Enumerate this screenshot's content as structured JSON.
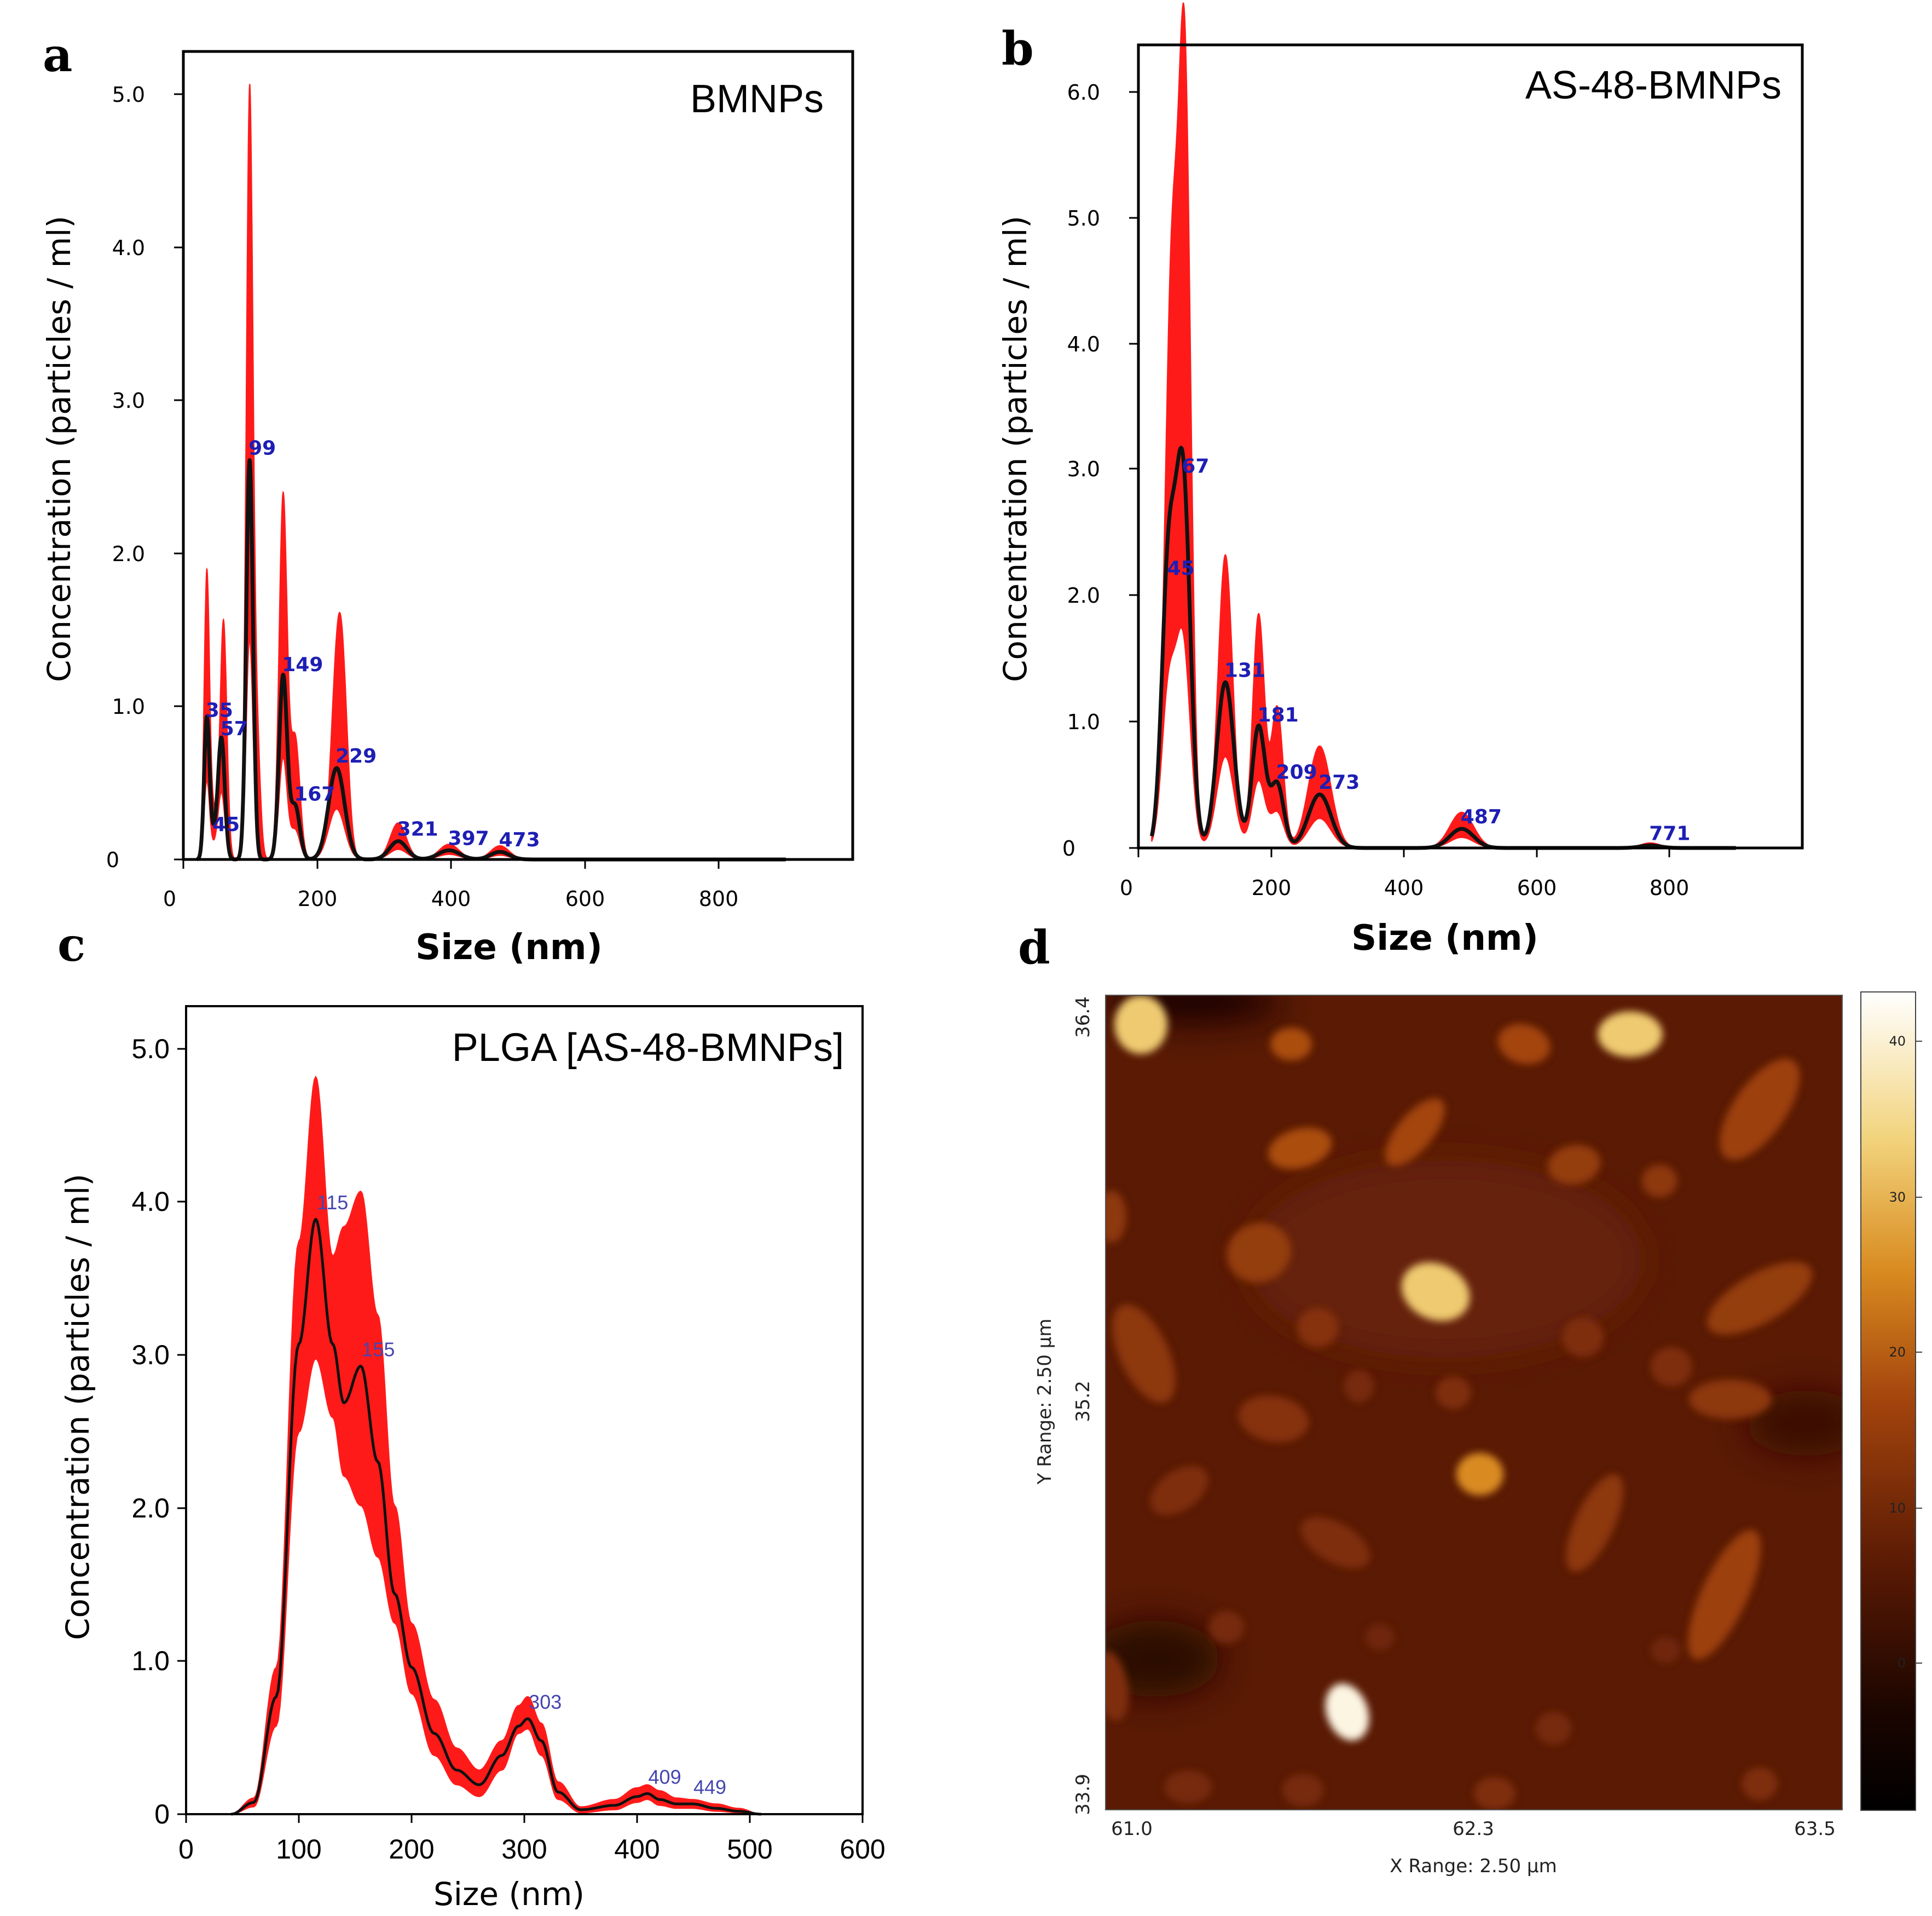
{
  "panels": {
    "a": {
      "label": "a",
      "title": "BMNPs",
      "xlabel": "Size (nm)",
      "ylabel": "Concentration (particles / ml)",
      "xticks": [
        "0",
        "200",
        "400",
        "600",
        "800"
      ],
      "yticks": [
        "0",
        "1.0",
        "2.0",
        "3.0",
        "4.0",
        "5.0"
      ],
      "peak_labels": [
        "35",
        "45",
        "57",
        "99",
        "149",
        "167",
        "229",
        "321",
        "397",
        "473"
      ]
    },
    "b": {
      "label": "b",
      "title": "AS-48-BMNPs",
      "xlabel": "Size (nm)",
      "ylabel": "Concentration (particles / ml)",
      "xticks": [
        "0",
        "200",
        "400",
        "600",
        "800"
      ],
      "yticks": [
        "0",
        "1.0",
        "2.0",
        "3.0",
        "4.0",
        "5.0",
        "6.0"
      ],
      "peak_labels": [
        "45",
        "67",
        "131",
        "181",
        "209",
        "273",
        "487",
        "771"
      ]
    },
    "c": {
      "label": "c",
      "title": "PLGA [AS-48-BMNPs]",
      "xlabel": "Size (nm)",
      "ylabel": "Concentration (particles / ml)",
      "xticks": [
        "0",
        "100",
        "200",
        "300",
        "400",
        "500",
        "600"
      ],
      "yticks": [
        "0",
        "1.0",
        "2.0",
        "3.0",
        "4.0",
        "5.0"
      ],
      "peak_labels": [
        "115",
        "155",
        "303",
        "409",
        "449"
      ]
    },
    "d": {
      "label": "d",
      "xlabel": "X Range:  2.50 µm",
      "ylabel": "Y Range:  2.50 µm",
      "xticks": [
        "61.0",
        "62.3",
        "63.5"
      ],
      "yticks": [
        "36.4",
        "35.2",
        "33.9"
      ],
      "colorbar_ticks": [
        "40",
        "30",
        "20",
        "10",
        "0"
      ]
    }
  },
  "colors": {
    "band": "#ff1a1a",
    "mean_line": "#111111",
    "peak_text": "#1e1eb4",
    "afm_bg": "#5a1a04"
  },
  "chart_data": [
    {
      "id": "a",
      "type": "area",
      "title": "BMNPs",
      "xlabel": "Size (nm)",
      "ylabel": "Concentration (particles / ml)",
      "xlim": [
        0,
        1000
      ],
      "ylim": [
        0,
        5.3
      ],
      "mean_peaks": [
        {
          "x": 35,
          "h": 0.9,
          "w": 4
        },
        {
          "x": 45,
          "h": 0.15,
          "w": 6
        },
        {
          "x": 57,
          "h": 0.78,
          "w": 5
        },
        {
          "x": 99,
          "h": 2.62,
          "w": 5
        },
        {
          "x": 149,
          "h": 1.2,
          "w": 6
        },
        {
          "x": 167,
          "h": 0.35,
          "w": 7
        },
        {
          "x": 229,
          "h": 0.6,
          "w": 12
        },
        {
          "x": 321,
          "h": 0.12,
          "w": 13
        },
        {
          "x": 397,
          "h": 0.06,
          "w": 16
        },
        {
          "x": 473,
          "h": 0.05,
          "w": 14
        }
      ],
      "band_peaks": [
        {
          "x": 35,
          "h": 1.83,
          "w": 4
        },
        {
          "x": 45,
          "h": 0.3,
          "w": 6
        },
        {
          "x": 60,
          "h": 1.56,
          "w": 5
        },
        {
          "x": 99,
          "h": 5.02,
          "w": 5
        },
        {
          "x": 110,
          "h": 0.75,
          "w": 5
        },
        {
          "x": 149,
          "h": 2.38,
          "w": 6
        },
        {
          "x": 167,
          "h": 0.8,
          "w": 7
        },
        {
          "x": 229,
          "h": 1.12,
          "w": 9
        },
        {
          "x": 239,
          "h": 0.8,
          "w": 8
        },
        {
          "x": 321,
          "h": 0.24,
          "w": 12
        },
        {
          "x": 397,
          "h": 0.1,
          "w": 15
        },
        {
          "x": 473,
          "h": 0.09,
          "w": 14
        }
      ],
      "peak_labels": [
        {
          "text": "35",
          "x": 35,
          "y": 0.9
        },
        {
          "text": "45",
          "x": 45,
          "y": 0.15
        },
        {
          "text": "57",
          "x": 57,
          "y": 0.78
        },
        {
          "text": "99",
          "x": 99,
          "y": 2.62
        },
        {
          "text": "149",
          "x": 149,
          "y": 1.2
        },
        {
          "text": "167",
          "x": 167,
          "y": 0.35
        },
        {
          "text": "229",
          "x": 229,
          "y": 0.6
        },
        {
          "text": "321",
          "x": 321,
          "y": 0.12
        },
        {
          "text": "397",
          "x": 397,
          "y": 0.06
        },
        {
          "text": "473",
          "x": 473,
          "y": 0.05
        }
      ]
    },
    {
      "id": "b",
      "type": "area",
      "title": "AS-48-BMNPs",
      "xlabel": "Size (nm)",
      "ylabel": "Concentration (particles / ml)",
      "xlim": [
        0,
        1000
      ],
      "ylim": [
        0,
        6.3
      ],
      "mean_peaks": [
        {
          "x": 45,
          "h": 2.1,
          "w": 10
        },
        {
          "x": 67,
          "h": 2.9,
          "w": 11
        },
        {
          "x": 131,
          "h": 1.3,
          "w": 13
        },
        {
          "x": 181,
          "h": 0.95,
          "w": 10
        },
        {
          "x": 209,
          "h": 0.5,
          "w": 10
        },
        {
          "x": 273,
          "h": 0.42,
          "w": 17
        },
        {
          "x": 487,
          "h": 0.15,
          "w": 18
        },
        {
          "x": 771,
          "h": 0.02,
          "w": 15
        }
      ],
      "band_peaks": [
        {
          "x": 50,
          "h": 4.4,
          "w": 10
        },
        {
          "x": 70,
          "h": 5.9,
          "w": 9
        },
        {
          "x": 131,
          "h": 2.3,
          "w": 11
        },
        {
          "x": 181,
          "h": 1.83,
          "w": 9
        },
        {
          "x": 209,
          "h": 1.1,
          "w": 9
        },
        {
          "x": 273,
          "h": 0.8,
          "w": 17
        },
        {
          "x": 487,
          "h": 0.28,
          "w": 18
        },
        {
          "x": 771,
          "h": 0.04,
          "w": 15
        }
      ],
      "peak_labels": [
        {
          "text": "45",
          "x": 45,
          "y": 2.1
        },
        {
          "text": "67",
          "x": 67,
          "y": 2.9
        },
        {
          "text": "131",
          "x": 131,
          "y": 1.3
        },
        {
          "text": "181",
          "x": 181,
          "y": 0.95
        },
        {
          "text": "209",
          "x": 209,
          "y": 0.5
        },
        {
          "text": "273",
          "x": 273,
          "y": 0.42
        },
        {
          "text": "487",
          "x": 487,
          "y": 0.15
        },
        {
          "text": "771",
          "x": 771,
          "y": 0.02
        }
      ]
    },
    {
      "id": "c",
      "type": "area",
      "title": "PLGA [AS-48-BMNPs]",
      "xlabel": "Size (nm)",
      "ylabel": "Concentration (particles / ml)",
      "xlim": [
        0,
        600
      ],
      "ylim": [
        0,
        5.5
      ],
      "x": [
        40,
        60,
        80,
        100,
        115,
        130,
        140,
        155,
        170,
        185,
        200,
        220,
        240,
        260,
        280,
        295,
        303,
        315,
        330,
        350,
        380,
        400,
        409,
        420,
        435,
        449,
        470,
        490,
        510
      ],
      "mean": [
        0.0,
        0.08,
        0.8,
        3.2,
        4.05,
        3.2,
        2.8,
        3.05,
        2.4,
        1.5,
        1.0,
        0.55,
        0.3,
        0.2,
        0.4,
        0.6,
        0.65,
        0.5,
        0.15,
        0.03,
        0.06,
        0.12,
        0.14,
        0.1,
        0.07,
        0.07,
        0.04,
        0.02,
        0.0
      ],
      "upper": [
        0.0,
        0.11,
        1.0,
        3.9,
        5.02,
        3.8,
        4.0,
        4.24,
        3.4,
        2.1,
        1.3,
        0.78,
        0.45,
        0.3,
        0.5,
        0.74,
        0.8,
        0.62,
        0.22,
        0.05,
        0.1,
        0.18,
        0.2,
        0.16,
        0.11,
        0.1,
        0.07,
        0.04,
        0.0
      ],
      "lower": [
        0.0,
        0.05,
        0.6,
        2.6,
        3.1,
        2.7,
        2.3,
        2.1,
        1.75,
        1.3,
        0.82,
        0.4,
        0.2,
        0.12,
        0.3,
        0.55,
        0.58,
        0.4,
        0.1,
        0.01,
        0.03,
        0.08,
        0.1,
        0.06,
        0.04,
        0.04,
        0.02,
        0.01,
        0.0
      ],
      "peak_labels": [
        {
          "text": "115",
          "x": 115,
          "y": 4.05
        },
        {
          "text": "155",
          "x": 155,
          "y": 3.05
        },
        {
          "text": "303",
          "x": 303,
          "y": 0.65
        },
        {
          "text": "409",
          "x": 409,
          "y": 0.14
        },
        {
          "text": "449",
          "x": 449,
          "y": 0.07
        }
      ]
    },
    {
      "id": "d",
      "type": "heatmap",
      "title": "",
      "xlabel": "X Range:  2.50 µm",
      "ylabel": "Y Range:  2.50 µm",
      "xlim": [
        61.0,
        63.5
      ],
      "ylim": [
        33.9,
        36.4
      ],
      "zlim": [
        -8,
        42
      ],
      "colorbar_ticks": [
        40,
        30,
        20,
        10,
        0
      ],
      "particles": [
        {
          "x": 61.12,
          "y": 36.31,
          "rx": 0.09,
          "ry": 0.09,
          "a": 0,
          "z": 32
        },
        {
          "x": 61.63,
          "y": 36.25,
          "rx": 0.07,
          "ry": 0.05,
          "a": 0,
          "z": 18
        },
        {
          "x": 61.66,
          "y": 35.93,
          "rx": 0.11,
          "ry": 0.06,
          "a": -15,
          "z": 18
        },
        {
          "x": 62.05,
          "y": 35.98,
          "rx": 0.14,
          "ry": 0.055,
          "a": -50,
          "z": 17
        },
        {
          "x": 62.42,
          "y": 36.25,
          "rx": 0.09,
          "ry": 0.06,
          "a": 15,
          "z": 17
        },
        {
          "x": 62.78,
          "y": 36.28,
          "rx": 0.11,
          "ry": 0.07,
          "a": 0,
          "z": 32
        },
        {
          "x": 62.59,
          "y": 35.88,
          "rx": 0.09,
          "ry": 0.06,
          "a": -10,
          "z": 15
        },
        {
          "x": 63.22,
          "y": 36.05,
          "rx": 0.2,
          "ry": 0.08,
          "a": -55,
          "z": 16
        },
        {
          "x": 62.88,
          "y": 35.83,
          "rx": 0.06,
          "ry": 0.05,
          "a": 0,
          "z": 14
        },
        {
          "x": 61.02,
          "y": 35.72,
          "rx": 0.05,
          "ry": 0.08,
          "a": 0,
          "z": 14
        },
        {
          "x": 61.52,
          "y": 35.61,
          "rx": 0.11,
          "ry": 0.09,
          "a": -20,
          "z": 15
        },
        {
          "x": 62.12,
          "y": 35.49,
          "rx": 0.12,
          "ry": 0.085,
          "a": 25,
          "z": 32
        },
        {
          "x": 61.13,
          "y": 35.3,
          "rx": 0.18,
          "ry": 0.075,
          "a": 65,
          "z": 14
        },
        {
          "x": 61.72,
          "y": 35.38,
          "rx": 0.07,
          "ry": 0.06,
          "a": 0,
          "z": 13
        },
        {
          "x": 62.18,
          "y": 35.18,
          "rx": 0.06,
          "ry": 0.05,
          "a": 0,
          "z": 12
        },
        {
          "x": 61.86,
          "y": 35.2,
          "rx": 0.05,
          "ry": 0.05,
          "a": 0,
          "z": 11
        },
        {
          "x": 62.62,
          "y": 35.35,
          "rx": 0.07,
          "ry": 0.06,
          "a": 0,
          "z": 12
        },
        {
          "x": 62.92,
          "y": 35.26,
          "rx": 0.07,
          "ry": 0.06,
          "a": 0,
          "z": 12
        },
        {
          "x": 63.22,
          "y": 35.47,
          "rx": 0.2,
          "ry": 0.075,
          "a": -30,
          "z": 15
        },
        {
          "x": 63.12,
          "y": 35.16,
          "rx": 0.14,
          "ry": 0.06,
          "a": 0,
          "z": 14
        },
        {
          "x": 61.25,
          "y": 34.88,
          "rx": 0.11,
          "ry": 0.06,
          "a": -35,
          "z": 12
        },
        {
          "x": 61.57,
          "y": 35.1,
          "rx": 0.12,
          "ry": 0.07,
          "a": 10,
          "z": 13
        },
        {
          "x": 61.78,
          "y": 34.72,
          "rx": 0.13,
          "ry": 0.06,
          "a": 30,
          "z": 12
        },
        {
          "x": 62.27,
          "y": 34.93,
          "rx": 0.08,
          "ry": 0.065,
          "a": 0,
          "z": 25
        },
        {
          "x": 62.66,
          "y": 34.78,
          "rx": 0.18,
          "ry": 0.06,
          "a": -65,
          "z": 14
        },
        {
          "x": 63.1,
          "y": 34.56,
          "rx": 0.24,
          "ry": 0.07,
          "a": -65,
          "z": 16
        },
        {
          "x": 61.02,
          "y": 34.28,
          "rx": 0.12,
          "ry": 0.05,
          "a": 80,
          "z": 12
        },
        {
          "x": 61.41,
          "y": 34.46,
          "rx": 0.06,
          "ry": 0.05,
          "a": 0,
          "z": 11
        },
        {
          "x": 61.82,
          "y": 34.2,
          "rx": 0.07,
          "ry": 0.09,
          "a": -20,
          "z": 40
        },
        {
          "x": 62.52,
          "y": 34.15,
          "rx": 0.06,
          "ry": 0.05,
          "a": 0,
          "z": 11
        },
        {
          "x": 62.32,
          "y": 33.95,
          "rx": 0.07,
          "ry": 0.05,
          "a": 0,
          "z": 12
        },
        {
          "x": 61.28,
          "y": 33.97,
          "rx": 0.08,
          "ry": 0.05,
          "a": 0,
          "z": 11
        },
        {
          "x": 61.67,
          "y": 33.96,
          "rx": 0.07,
          "ry": 0.05,
          "a": 0,
          "z": 11
        },
        {
          "x": 61.93,
          "y": 34.43,
          "rx": 0.05,
          "ry": 0.04,
          "a": 0,
          "z": 10
        },
        {
          "x": 62.9,
          "y": 34.39,
          "rx": 0.05,
          "ry": 0.04,
          "a": 0,
          "z": 10
        },
        {
          "x": 63.22,
          "y": 33.98,
          "rx": 0.06,
          "ry": 0.05,
          "a": 0,
          "z": 12
        }
      ]
    }
  ]
}
